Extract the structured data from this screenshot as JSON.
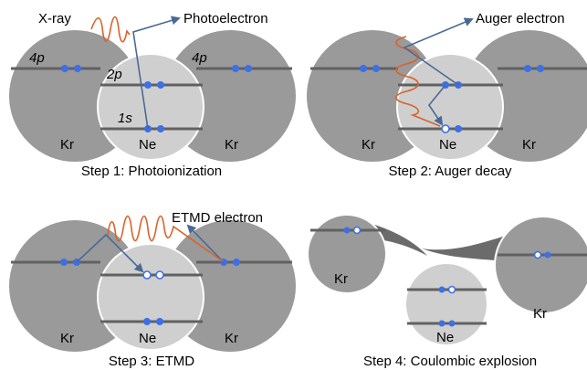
{
  "panels": {
    "step1": {
      "caption": "Step 1: Photoionization",
      "xray": "X-ray",
      "photoelectron": "Photoelectron",
      "level_4p_left": "4p",
      "level_4p_right": "4p",
      "level_2p": "2p",
      "level_1s": "1s",
      "kr_left": "Kr",
      "ne": "Ne",
      "kr_right": "Kr"
    },
    "step2": {
      "caption": "Step 2: Auger decay",
      "auger_electron": "Auger electron",
      "kr_left": "Kr",
      "ne": "Ne",
      "kr_right": "Kr"
    },
    "step3": {
      "caption": "Step 3: ETMD",
      "etmd_electron": "ETMD electron",
      "kr_left": "Kr",
      "ne": "Ne",
      "kr_right": "Kr"
    },
    "step4": {
      "caption": "Step 4: Coulombic explosion",
      "kr_left": "Kr",
      "ne": "Ne",
      "kr_right": "Kr"
    }
  },
  "colors": {
    "kr": "#9a9a9a",
    "ne": "#cfcfcf",
    "electron": "#3d6fe6",
    "photon": "#d9622b",
    "electron_path": "#4a6a94"
  }
}
